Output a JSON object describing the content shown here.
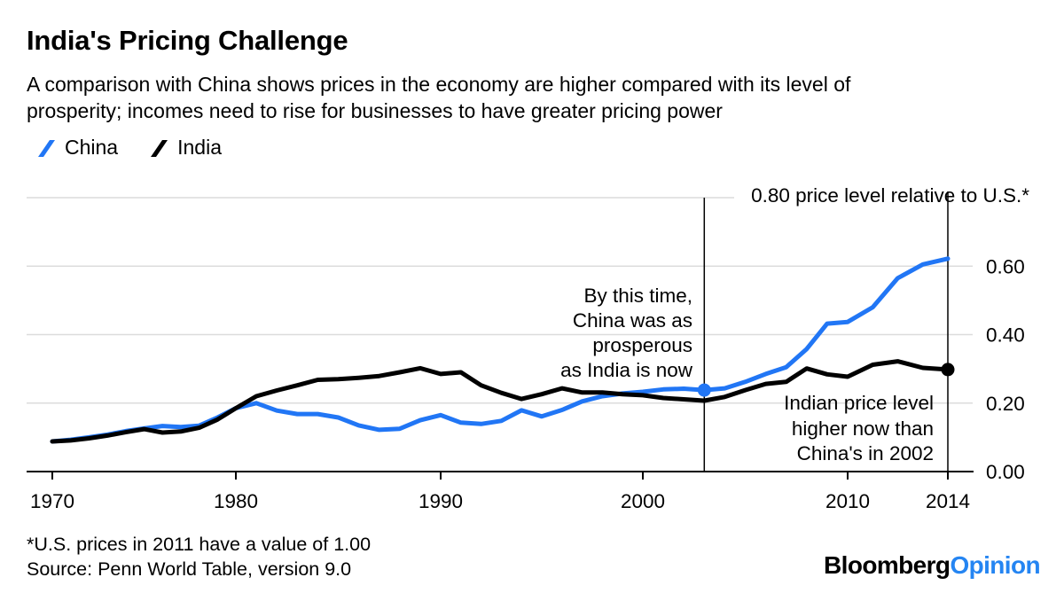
{
  "header": {
    "title": "India's Pricing Challenge",
    "subtitle": "A comparison with China shows prices in the economy are higher compared with its level of\nprosperity; incomes need to rise for businesses to have greater pricing power"
  },
  "legend": {
    "items": [
      {
        "label": "China",
        "color": "#2176f5"
      },
      {
        "label": "India",
        "color": "#000000"
      }
    ]
  },
  "chart_data": {
    "type": "line",
    "title": "India's Pricing Challenge",
    "y_axis_top_label": "0.80 price level relative to U.S.*",
    "ylim": [
      0,
      0.8
    ],
    "grid": "horizontal",
    "legend_position": "top-left",
    "y_ticks": [
      {
        "value": 0.0,
        "label": "0.00"
      },
      {
        "value": 0.2,
        "label": "0.20"
      },
      {
        "value": 0.4,
        "label": "0.40"
      },
      {
        "value": 0.6,
        "label": "0.60"
      }
    ],
    "x_ticks": [
      {
        "year": 1970,
        "label": "1970"
      },
      {
        "year": 1980,
        "label": "1980"
      },
      {
        "year": 1990,
        "label": "1990"
      },
      {
        "year": 2000,
        "label": "2000"
      },
      {
        "year": 2010,
        "label": "2010"
      },
      {
        "year": 2014,
        "label": "2014"
      }
    ],
    "years": [
      1970,
      1971,
      1972,
      1973,
      1974,
      1975,
      1976,
      1977,
      1978,
      1979,
      1980,
      1981,
      1982,
      1983,
      1984,
      1985,
      1986,
      1987,
      1988,
      1989,
      1990,
      1991,
      1992,
      1993,
      1994,
      1995,
      1996,
      1997,
      1998,
      1999,
      2000,
      2001,
      2002,
      2003,
      2004,
      2005,
      2006,
      2007,
      2008,
      2009,
      2010,
      2011,
      2012,
      2013,
      2014
    ],
    "series": [
      {
        "name": "China",
        "color": "#2176f5",
        "values": [
          0.088,
          0.093,
          0.1,
          0.108,
          0.118,
          0.126,
          0.133,
          0.13,
          0.134,
          0.158,
          0.185,
          0.2,
          0.178,
          0.168,
          0.168,
          0.158,
          0.135,
          0.122,
          0.125,
          0.15,
          0.165,
          0.143,
          0.139,
          0.148,
          0.179,
          0.161,
          0.18,
          0.205,
          0.22,
          0.228,
          0.233,
          0.24,
          0.242,
          0.238,
          0.243,
          0.262,
          0.285,
          0.305,
          0.358,
          0.432,
          0.437,
          0.48,
          0.565,
          0.605,
          0.622
        ]
      },
      {
        "name": "India",
        "color": "#000000",
        "values": [
          0.088,
          0.091,
          0.097,
          0.105,
          0.115,
          0.124,
          0.114,
          0.117,
          0.128,
          0.152,
          0.185,
          0.22,
          0.237,
          0.252,
          0.268,
          0.27,
          0.274,
          0.279,
          0.29,
          0.302,
          0.285,
          0.29,
          0.252,
          0.23,
          0.212,
          0.226,
          0.243,
          0.231,
          0.231,
          0.226,
          0.223,
          0.215,
          0.211,
          0.207,
          0.218,
          0.238,
          0.256,
          0.262,
          0.301,
          0.284,
          0.277,
          0.312,
          0.322,
          0.303,
          0.298
        ]
      }
    ],
    "markers": [
      {
        "series": "China",
        "year": 2003,
        "value": 0.238,
        "color": "#2176f5"
      },
      {
        "series": "India",
        "year": 2014,
        "value": 0.298,
        "color": "#000000"
      }
    ],
    "vlines": [
      {
        "year": 2003
      },
      {
        "year": 2014
      }
    ],
    "annotations": [
      {
        "text": "By this time,\nChina was as\nprosperous\nas India is now"
      },
      {
        "text": "Indian price level\nhigher now than\nChina's in 2002"
      }
    ]
  },
  "footer": {
    "note": "*U.S. prices in 2011 have a value of 1.00",
    "source": "Source: Penn World Table, version 9.0"
  },
  "brand": {
    "name_black": "Bloomberg",
    "name_blue": "Opinion"
  }
}
